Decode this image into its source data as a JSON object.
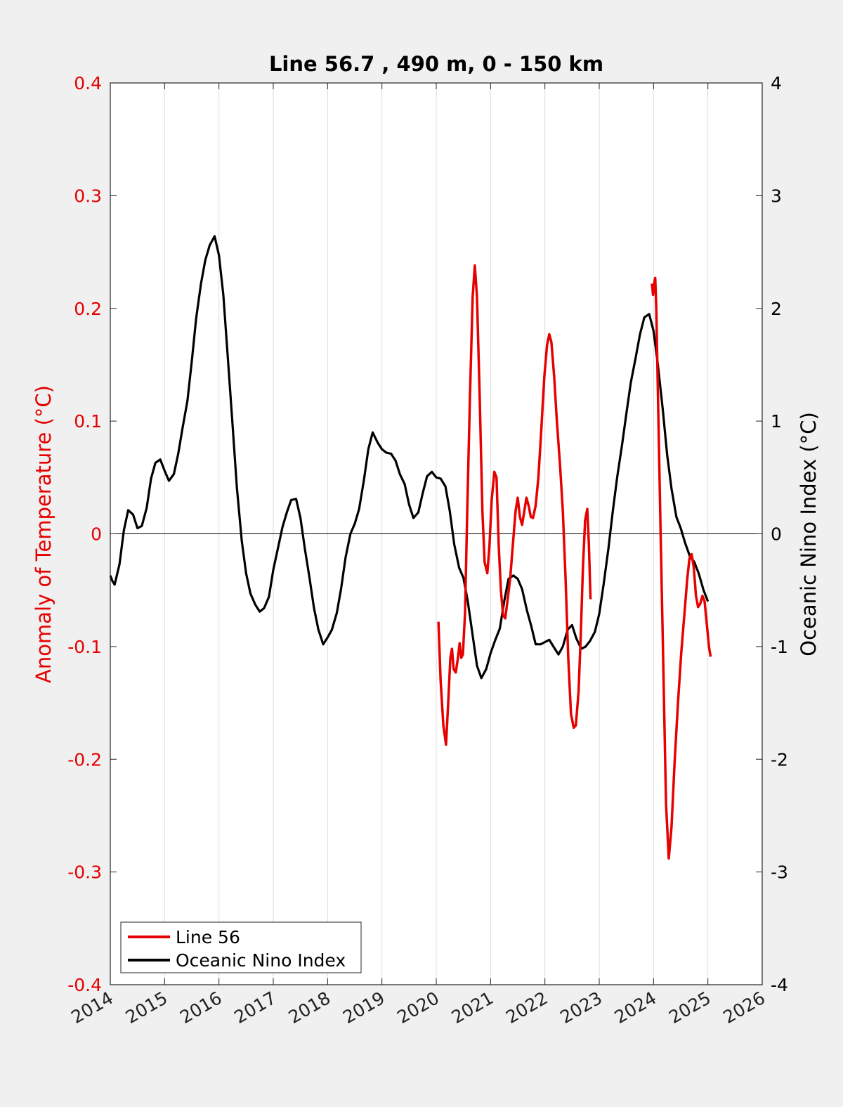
{
  "chart_data": {
    "type": "line",
    "title": "Line 56.7 , 490 m, 0 - 150 km",
    "xlabel": "",
    "ylabel_left": "Anomaly of Temperature (°C)",
    "ylabel_right": "Oceanic Nino Index (°C)",
    "xlim": [
      2014,
      2026
    ],
    "ylim_left": [
      -0.4,
      0.4
    ],
    "ylim_right": [
      -4,
      4
    ],
    "x_ticks": [
      "2014",
      "2015",
      "2016",
      "2017",
      "2018",
      "2019",
      "2020",
      "2021",
      "2022",
      "2023",
      "2024",
      "2025",
      "2026"
    ],
    "y_ticks_left": [
      "-0.4",
      "-0.3",
      "-0.2",
      "-0.1",
      "0",
      "0.1",
      "0.2",
      "0.3",
      "0.4"
    ],
    "y_ticks_right": [
      "-4",
      "-3",
      "-2",
      "-1",
      "0",
      "1",
      "2",
      "3",
      "4"
    ],
    "grid": "vertical",
    "zero_line": true,
    "legend_position": "bottom-left",
    "colors": {
      "line56": "#e60000",
      "oni": "#000000",
      "left_axis": "#e60000",
      "right_axis": "#000000"
    },
    "series": [
      {
        "name": "Line 56",
        "axis": "left",
        "color": "#e60000",
        "segments": [
          [
            [
              2020.04,
              -0.078
            ],
            [
              2020.08,
              -0.13
            ],
            [
              2020.13,
              -0.17
            ],
            [
              2020.18,
              -0.187
            ],
            [
              2020.22,
              -0.15
            ],
            [
              2020.26,
              -0.11
            ],
            [
              2020.29,
              -0.102
            ],
            [
              2020.32,
              -0.12
            ],
            [
              2020.36,
              -0.123
            ],
            [
              2020.4,
              -0.11
            ],
            [
              2020.43,
              -0.097
            ],
            [
              2020.46,
              -0.11
            ],
            [
              2020.49,
              -0.107
            ],
            [
              2020.53,
              -0.07
            ],
            [
              2020.57,
              0.02
            ],
            [
              2020.62,
              0.12
            ],
            [
              2020.67,
              0.21
            ],
            [
              2020.71,
              0.238
            ],
            [
              2020.75,
              0.21
            ],
            [
              2020.8,
              0.12
            ],
            [
              2020.85,
              0.02
            ],
            [
              2020.89,
              -0.025
            ],
            [
              2020.94,
              -0.035
            ],
            [
              2020.98,
              -0.01
            ],
            [
              2021.02,
              0.03
            ],
            [
              2021.07,
              0.055
            ],
            [
              2021.11,
              0.05
            ],
            [
              2021.15,
              -0.01
            ],
            [
              2021.19,
              -0.05
            ],
            [
              2021.23,
              -0.072
            ],
            [
              2021.27,
              -0.075
            ],
            [
              2021.31,
              -0.06
            ],
            [
              2021.36,
              -0.04
            ],
            [
              2021.41,
              -0.01
            ],
            [
              2021.46,
              0.02
            ],
            [
              2021.5,
              0.032
            ],
            [
              2021.54,
              0.015
            ],
            [
              2021.58,
              0.008
            ],
            [
              2021.62,
              0.02
            ],
            [
              2021.66,
              0.032
            ],
            [
              2021.7,
              0.025
            ],
            [
              2021.74,
              0.015
            ],
            [
              2021.78,
              0.014
            ],
            [
              2021.83,
              0.025
            ],
            [
              2021.88,
              0.05
            ],
            [
              2021.93,
              0.09
            ],
            [
              2021.99,
              0.14
            ],
            [
              2022.04,
              0.168
            ],
            [
              2022.08,
              0.177
            ],
            [
              2022.12,
              0.17
            ],
            [
              2022.17,
              0.14
            ],
            [
              2022.22,
              0.1
            ],
            [
              2022.28,
              0.06
            ],
            [
              2022.33,
              0.02
            ],
            [
              2022.38,
              -0.04
            ],
            [
              2022.43,
              -0.11
            ],
            [
              2022.48,
              -0.16
            ],
            [
              2022.53,
              -0.172
            ],
            [
              2022.57,
              -0.17
            ],
            [
              2022.62,
              -0.14
            ],
            [
              2022.66,
              -0.09
            ],
            [
              2022.7,
              -0.03
            ],
            [
              2022.74,
              0.012
            ],
            [
              2022.78,
              0.022
            ],
            [
              2022.81,
              -0.01
            ],
            [
              2022.84,
              -0.058
            ]
          ],
          [
            [
              2023.97,
              0.222
            ],
            [
              2023.99,
              0.212
            ],
            [
              2024.01,
              0.222
            ],
            [
              2024.03,
              0.227
            ],
            [
              2024.05,
              0.2
            ],
            [
              2024.09,
              0.1
            ],
            [
              2024.13,
              0.0
            ],
            [
              2024.18,
              -0.12
            ],
            [
              2024.23,
              -0.24
            ],
            [
              2024.28,
              -0.288
            ],
            [
              2024.33,
              -0.26
            ],
            [
              2024.39,
              -0.2
            ],
            [
              2024.45,
              -0.15
            ],
            [
              2024.51,
              -0.105
            ],
            [
              2024.57,
              -0.07
            ],
            [
              2024.62,
              -0.04
            ],
            [
              2024.66,
              -0.022
            ],
            [
              2024.7,
              -0.018
            ],
            [
              2024.74,
              -0.03
            ],
            [
              2024.78,
              -0.055
            ],
            [
              2024.82,
              -0.065
            ],
            [
              2024.86,
              -0.062
            ],
            [
              2024.9,
              -0.055
            ],
            [
              2024.94,
              -0.06
            ],
            [
              2024.98,
              -0.08
            ],
            [
              2025.02,
              -0.1
            ],
            [
              2025.05,
              -0.109
            ]
          ]
        ]
      },
      {
        "name": "Oceanic Nino Index",
        "axis": "right",
        "color": "#000000",
        "x": [
          2014.0,
          2014.04,
          2014.08,
          2014.17,
          2014.25,
          2014.33,
          2014.42,
          2014.5,
          2014.58,
          2014.67,
          2014.75,
          2014.83,
          2014.92,
          2015.0,
          2015.08,
          2015.17,
          2015.25,
          2015.33,
          2015.42,
          2015.5,
          2015.58,
          2015.67,
          2015.75,
          2015.83,
          2015.92,
          2016.0,
          2016.08,
          2016.17,
          2016.25,
          2016.33,
          2016.42,
          2016.5,
          2016.58,
          2016.67,
          2016.75,
          2016.83,
          2016.92,
          2017.0,
          2017.08,
          2017.17,
          2017.25,
          2017.33,
          2017.42,
          2017.5,
          2017.58,
          2017.67,
          2017.75,
          2017.83,
          2017.92,
          2018.0,
          2018.08,
          2018.17,
          2018.25,
          2018.33,
          2018.42,
          2018.5,
          2018.58,
          2018.67,
          2018.75,
          2018.83,
          2018.92,
          2019.0,
          2019.08,
          2019.17,
          2019.25,
          2019.33,
          2019.42,
          2019.5,
          2019.58,
          2019.67,
          2019.75,
          2019.83,
          2019.92,
          2020.0,
          2020.08,
          2020.17,
          2020.25,
          2020.33,
          2020.42,
          2020.5,
          2020.58,
          2020.67,
          2020.75,
          2020.83,
          2020.92,
          2021.0,
          2021.08,
          2021.17,
          2021.25,
          2021.33,
          2021.42,
          2021.5,
          2021.58,
          2021.67,
          2021.75,
          2021.83,
          2021.92,
          2022.0,
          2022.08,
          2022.17,
          2022.25,
          2022.33,
          2022.42,
          2022.5,
          2022.58,
          2022.67,
          2022.75,
          2022.83,
          2022.92,
          2023.0,
          2023.08,
          2023.17,
          2023.25,
          2023.33,
          2023.42,
          2023.5,
          2023.58,
          2023.67,
          2023.75,
          2023.83,
          2023.92,
          2024.0,
          2024.08,
          2024.17,
          2024.25,
          2024.33,
          2024.42,
          2024.5,
          2024.58,
          2024.67,
          2024.75,
          2024.83,
          2024.92,
          2025.0
        ],
        "y": [
          -0.37,
          -0.42,
          -0.45,
          -0.27,
          0.03,
          0.21,
          0.17,
          0.05,
          0.07,
          0.23,
          0.49,
          0.63,
          0.66,
          0.56,
          0.47,
          0.53,
          0.71,
          0.94,
          1.18,
          1.53,
          1.91,
          2.22,
          2.43,
          2.56,
          2.64,
          2.47,
          2.12,
          1.52,
          0.97,
          0.41,
          -0.06,
          -0.35,
          -0.53,
          -0.63,
          -0.69,
          -0.66,
          -0.56,
          -0.32,
          -0.14,
          0.06,
          0.19,
          0.3,
          0.31,
          0.14,
          -0.13,
          -0.4,
          -0.66,
          -0.85,
          -0.98,
          -0.92,
          -0.85,
          -0.7,
          -0.48,
          -0.21,
          0.0,
          0.09,
          0.22,
          0.48,
          0.75,
          0.9,
          0.81,
          0.75,
          0.72,
          0.71,
          0.65,
          0.53,
          0.44,
          0.26,
          0.14,
          0.19,
          0.36,
          0.51,
          0.55,
          0.5,
          0.49,
          0.42,
          0.2,
          -0.09,
          -0.3,
          -0.39,
          -0.6,
          -0.9,
          -1.17,
          -1.28,
          -1.2,
          -1.06,
          -0.95,
          -0.84,
          -0.6,
          -0.4,
          -0.37,
          -0.4,
          -0.49,
          -0.68,
          -0.82,
          -0.98,
          -0.98,
          -0.96,
          -0.94,
          -1.01,
          -1.07,
          -1.0,
          -0.85,
          -0.81,
          -0.93,
          -1.02,
          -1.0,
          -0.95,
          -0.87,
          -0.71,
          -0.45,
          -0.13,
          0.2,
          0.5,
          0.79,
          1.07,
          1.34,
          1.56,
          1.77,
          1.92,
          1.95,
          1.8,
          1.5,
          1.1,
          0.7,
          0.4,
          0.15,
          0.05,
          -0.08,
          -0.2,
          -0.25,
          -0.35,
          -0.5,
          -0.6
        ]
      }
    ]
  }
}
